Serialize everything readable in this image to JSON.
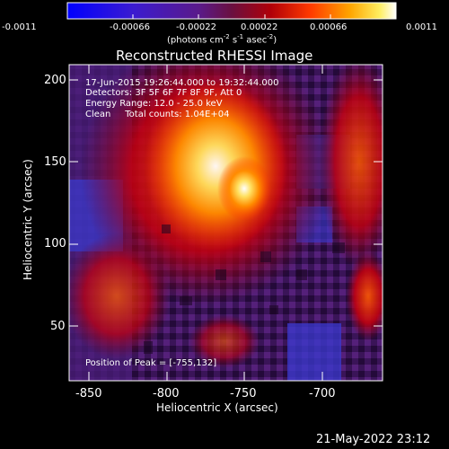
{
  "colorbar": {
    "ticks": [
      "-0.0011",
      "-0.00066",
      "-0.00022",
      "0.00022",
      "0.00066",
      "0.0011"
    ],
    "unit": {
      "prefix": "(photons cm",
      "sup1": "-2",
      "mid1": " s",
      "sup2": "-1",
      "mid2": " asec",
      "sup3": "-2",
      "suffix": ")"
    }
  },
  "plot": {
    "title": "Reconstructed RHESSI Image",
    "header_lines": [
      "17-Jun-2015 19:26:44.000 to 19:32:44.000",
      "Detectors: 3F 5F 6F 7F 8F 9F, Att 0",
      "Energy Range: 12.0 - 25.0 keV",
      "Clean     Total counts: 1.04E+04"
    ],
    "peak_text": "Position of Peak = [-755,132]",
    "x_ticks": [
      "-850",
      "-800",
      "-750",
      "-700"
    ],
    "y_ticks": [
      "200",
      "150",
      "100",
      "50"
    ],
    "xlabel": "Heliocentric X (arcsec)",
    "ylabel": "Heliocentric Y (arcsec)",
    "xlim": [
      -862,
      -682
    ],
    "ylim": [
      15,
      208
    ]
  },
  "timestamp": "21-May-2022 23:12"
}
